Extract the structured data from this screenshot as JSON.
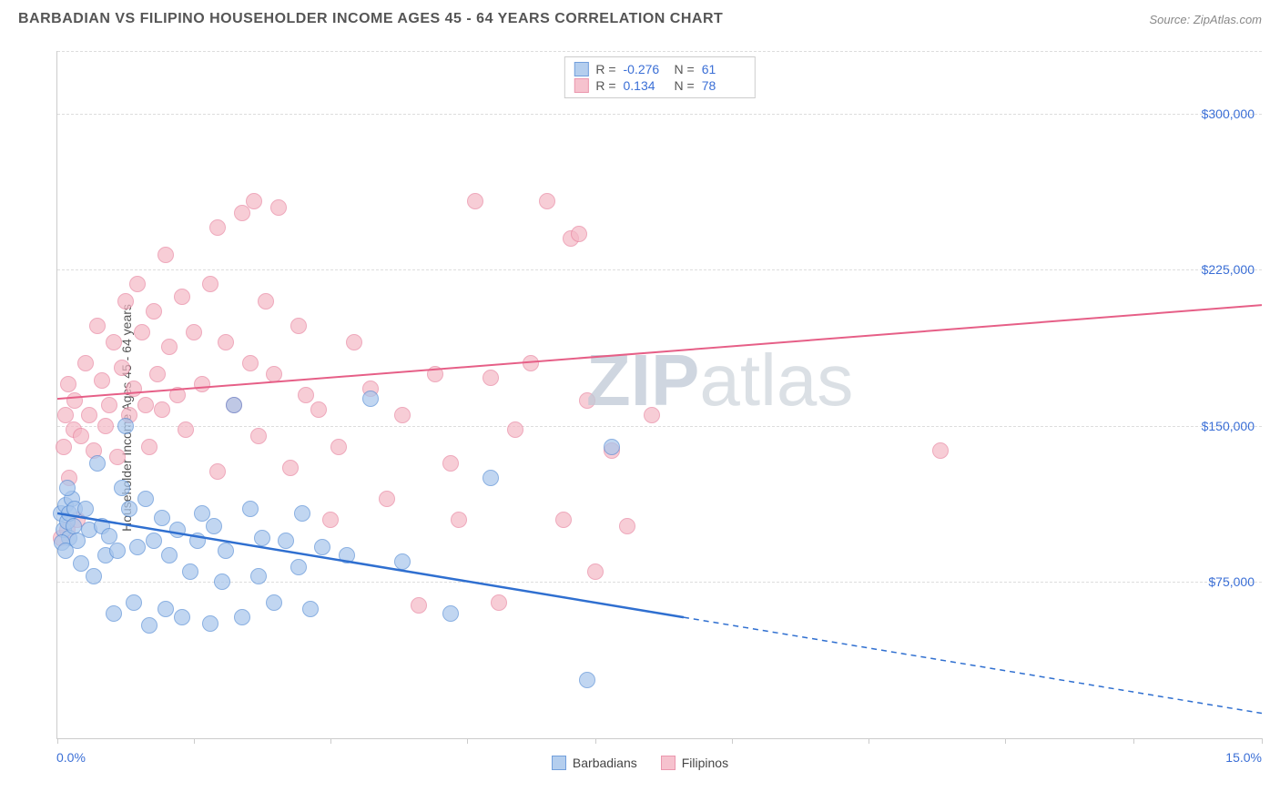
{
  "header": {
    "title": "BARBADIAN VS FILIPINO HOUSEHOLDER INCOME AGES 45 - 64 YEARS CORRELATION CHART",
    "source": "Source: ZipAtlas.com"
  },
  "chart": {
    "type": "scatter",
    "ylabel": "Householder Income Ages 45 - 64 years",
    "watermark_a": "ZIP",
    "watermark_b": "atlas",
    "xlim": [
      0,
      15
    ],
    "ylim": [
      0,
      330000
    ],
    "x_ticks": [
      0,
      1.7,
      3.4,
      5.1,
      6.7,
      8.4,
      10.1,
      11.8,
      13.4,
      15
    ],
    "x_axis_labels": [
      {
        "pos": 0,
        "text": "0.0%"
      },
      {
        "pos": 15,
        "text": "15.0%"
      }
    ],
    "y_gridlines": [
      75000,
      150000,
      225000,
      300000,
      330000
    ],
    "y_tick_labels": [
      {
        "v": 75000,
        "text": "$75,000"
      },
      {
        "v": 150000,
        "text": "$150,000"
      },
      {
        "v": 225000,
        "text": "$225,000"
      },
      {
        "v": 300000,
        "text": "$300,000"
      }
    ],
    "background_color": "#ffffff",
    "grid_color": "#dddddd",
    "marker_radius": 9,
    "marker_stroke_width": 1.5,
    "series": {
      "barbadians": {
        "label": "Barbadians",
        "fill": "#a8c6ec",
        "fill_opacity": 0.45,
        "stroke": "#5a8fd6",
        "line_color": "#2f6fd0",
        "line_width": 2.5,
        "r_value": "-0.276",
        "n_value": "61",
        "trend": {
          "y_at_xmin": 108000,
          "y_at_xmax": 12000,
          "solid_until_x": 7.8
        },
        "points": [
          [
            0.05,
            108000
          ],
          [
            0.08,
            100000
          ],
          [
            0.1,
            112000
          ],
          [
            0.12,
            104000
          ],
          [
            0.15,
            96000
          ],
          [
            0.18,
            115000
          ],
          [
            0.15,
            108000
          ],
          [
            0.2,
            102000
          ],
          [
            0.22,
            110000
          ],
          [
            0.06,
            94000
          ],
          [
            0.1,
            90000
          ],
          [
            0.12,
            120000
          ],
          [
            0.25,
            95000
          ],
          [
            0.3,
            84000
          ],
          [
            0.35,
            110000
          ],
          [
            0.4,
            100000
          ],
          [
            0.45,
            78000
          ],
          [
            0.5,
            132000
          ],
          [
            0.55,
            102000
          ],
          [
            0.6,
            88000
          ],
          [
            0.65,
            97000
          ],
          [
            0.7,
            60000
          ],
          [
            0.75,
            90000
          ],
          [
            0.8,
            120000
          ],
          [
            0.85,
            150000
          ],
          [
            0.9,
            110000
          ],
          [
            0.95,
            65000
          ],
          [
            1.0,
            92000
          ],
          [
            1.1,
            115000
          ],
          [
            1.15,
            54000
          ],
          [
            1.2,
            95000
          ],
          [
            1.3,
            106000
          ],
          [
            1.35,
            62000
          ],
          [
            1.4,
            88000
          ],
          [
            1.5,
            100000
          ],
          [
            1.55,
            58000
          ],
          [
            1.65,
            80000
          ],
          [
            1.75,
            95000
          ],
          [
            1.8,
            108000
          ],
          [
            1.9,
            55000
          ],
          [
            1.95,
            102000
          ],
          [
            2.05,
            75000
          ],
          [
            2.1,
            90000
          ],
          [
            2.2,
            160000
          ],
          [
            2.3,
            58000
          ],
          [
            2.4,
            110000
          ],
          [
            2.5,
            78000
          ],
          [
            2.55,
            96000
          ],
          [
            2.7,
            65000
          ],
          [
            2.85,
            95000
          ],
          [
            3.0,
            82000
          ],
          [
            3.05,
            108000
          ],
          [
            3.15,
            62000
          ],
          [
            3.3,
            92000
          ],
          [
            3.6,
            88000
          ],
          [
            3.9,
            163000
          ],
          [
            4.3,
            85000
          ],
          [
            4.9,
            60000
          ],
          [
            5.4,
            125000
          ],
          [
            6.6,
            28000
          ],
          [
            6.9,
            140000
          ]
        ]
      },
      "filipinos": {
        "label": "Filipinos",
        "fill": "#f5b8c6",
        "fill_opacity": 0.45,
        "stroke": "#e886a0",
        "line_color": "#e65f87",
        "line_width": 2,
        "r_value": "0.134",
        "n_value": "78",
        "trend": {
          "y_at_xmin": 163000,
          "y_at_xmax": 208000,
          "solid_until_x": 15
        },
        "points": [
          [
            0.05,
            96000
          ],
          [
            0.08,
            140000
          ],
          [
            0.1,
            155000
          ],
          [
            0.12,
            100000
          ],
          [
            0.14,
            170000
          ],
          [
            0.15,
            125000
          ],
          [
            0.2,
            148000
          ],
          [
            0.22,
            162000
          ],
          [
            0.25,
            105000
          ],
          [
            0.3,
            145000
          ],
          [
            0.35,
            180000
          ],
          [
            0.4,
            155000
          ],
          [
            0.45,
            138000
          ],
          [
            0.5,
            198000
          ],
          [
            0.55,
            172000
          ],
          [
            0.6,
            150000
          ],
          [
            0.65,
            160000
          ],
          [
            0.7,
            190000
          ],
          [
            0.75,
            135000
          ],
          [
            0.8,
            178000
          ],
          [
            0.85,
            210000
          ],
          [
            0.9,
            155000
          ],
          [
            0.95,
            168000
          ],
          [
            1.0,
            218000
          ],
          [
            1.05,
            195000
          ],
          [
            1.1,
            160000
          ],
          [
            1.15,
            140000
          ],
          [
            1.2,
            205000
          ],
          [
            1.25,
            175000
          ],
          [
            1.3,
            158000
          ],
          [
            1.35,
            232000
          ],
          [
            1.4,
            188000
          ],
          [
            1.5,
            165000
          ],
          [
            1.55,
            212000
          ],
          [
            1.6,
            148000
          ],
          [
            1.7,
            195000
          ],
          [
            1.8,
            170000
          ],
          [
            1.9,
            218000
          ],
          [
            2.0,
            245000
          ],
          [
            2.0,
            128000
          ],
          [
            2.1,
            190000
          ],
          [
            2.2,
            160000
          ],
          [
            2.3,
            252000
          ],
          [
            2.4,
            180000
          ],
          [
            2.45,
            258000
          ],
          [
            2.5,
            145000
          ],
          [
            2.6,
            210000
          ],
          [
            2.7,
            175000
          ],
          [
            2.75,
            255000
          ],
          [
            2.9,
            130000
          ],
          [
            3.0,
            198000
          ],
          [
            3.1,
            165000
          ],
          [
            3.25,
            158000
          ],
          [
            3.4,
            105000
          ],
          [
            3.5,
            140000
          ],
          [
            3.7,
            190000
          ],
          [
            3.9,
            168000
          ],
          [
            4.1,
            115000
          ],
          [
            4.3,
            155000
          ],
          [
            4.5,
            64000
          ],
          [
            4.7,
            175000
          ],
          [
            4.9,
            132000
          ],
          [
            5.0,
            105000
          ],
          [
            5.2,
            258000
          ],
          [
            5.4,
            173000
          ],
          [
            5.5,
            65000
          ],
          [
            5.7,
            148000
          ],
          [
            5.9,
            180000
          ],
          [
            6.1,
            258000
          ],
          [
            6.3,
            105000
          ],
          [
            6.4,
            240000
          ],
          [
            6.5,
            242000
          ],
          [
            6.6,
            162000
          ],
          [
            6.9,
            138000
          ],
          [
            7.1,
            102000
          ],
          [
            7.4,
            155000
          ],
          [
            11.0,
            138000
          ],
          [
            6.7,
            80000
          ]
        ]
      }
    }
  }
}
